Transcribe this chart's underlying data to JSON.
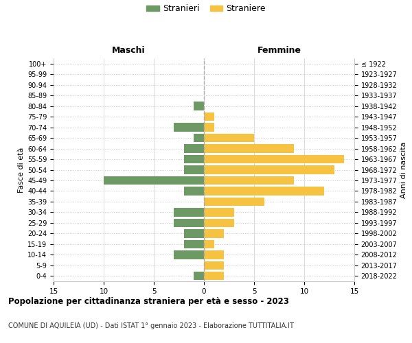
{
  "age_groups": [
    "0-4",
    "5-9",
    "10-14",
    "15-19",
    "20-24",
    "25-29",
    "30-34",
    "35-39",
    "40-44",
    "45-49",
    "50-54",
    "55-59",
    "60-64",
    "65-69",
    "70-74",
    "75-79",
    "80-84",
    "85-89",
    "90-94",
    "95-99",
    "100+"
  ],
  "birth_years": [
    "2018-2022",
    "2013-2017",
    "2008-2012",
    "2003-2007",
    "1998-2002",
    "1993-1997",
    "1988-1992",
    "1983-1987",
    "1978-1982",
    "1973-1977",
    "1968-1972",
    "1963-1967",
    "1958-1962",
    "1953-1957",
    "1948-1952",
    "1943-1947",
    "1938-1942",
    "1933-1937",
    "1928-1932",
    "1923-1927",
    "≤ 1922"
  ],
  "males": [
    1,
    0,
    3,
    2,
    2,
    3,
    3,
    0,
    2,
    10,
    2,
    2,
    2,
    1,
    3,
    0,
    1,
    0,
    0,
    0,
    0
  ],
  "females": [
    2,
    2,
    2,
    1,
    2,
    3,
    3,
    6,
    12,
    9,
    13,
    14,
    9,
    5,
    1,
    1,
    0,
    0,
    0,
    0,
    0
  ],
  "male_color": "#6d9a64",
  "female_color": "#f5c242",
  "title": "Popolazione per cittadinanza straniera per età e sesso - 2023",
  "subtitle": "COMUNE DI AQUILEIA (UD) - Dati ISTAT 1° gennaio 2023 - Elaborazione TUTTITALIA.IT",
  "xlabel_left": "Maschi",
  "xlabel_right": "Femmine",
  "ylabel_left": "Fasce di età",
  "ylabel_right": "Anni di nascita",
  "legend_males": "Stranieri",
  "legend_females": "Straniere",
  "xlim": 15,
  "background_color": "#ffffff",
  "grid_color": "#cccccc"
}
